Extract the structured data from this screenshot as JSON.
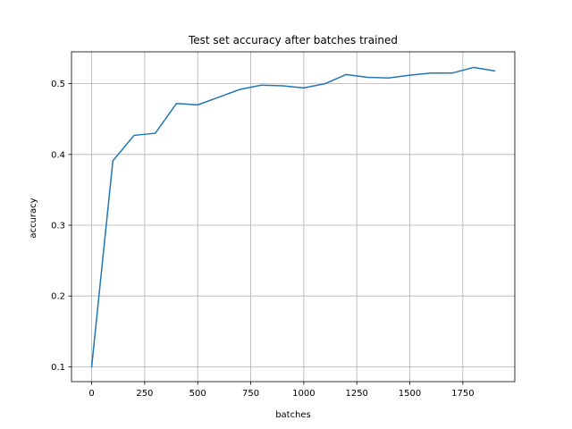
{
  "chart_data": {
    "type": "line",
    "title": "Test set accuracy after batches trained",
    "xlabel": "batches",
    "ylabel": "accuracy",
    "xlim": [
      -95,
      1995
    ],
    "ylim": [
      0.079,
      0.545
    ],
    "grid": true,
    "x_ticks": [
      0,
      250,
      500,
      750,
      1000,
      1250,
      1500,
      1750
    ],
    "x_tick_labels": [
      "0",
      "250",
      "500",
      "750",
      "1000",
      "1250",
      "1500",
      "1750"
    ],
    "y_ticks": [
      0.1,
      0.2,
      0.3,
      0.4,
      0.5
    ],
    "y_tick_labels": [
      "0.1",
      "0.2",
      "0.3",
      "0.4",
      "0.5"
    ],
    "line_color": "#1f77b4",
    "series": [
      {
        "x": [
          0,
          100,
          200,
          300,
          400,
          500,
          600,
          700,
          800,
          900,
          1000,
          1100,
          1200,
          1300,
          1400,
          1500,
          1600,
          1700,
          1800,
          1900
        ],
        "y": [
          0.1,
          0.391,
          0.427,
          0.43,
          0.472,
          0.47,
          0.481,
          0.492,
          0.498,
          0.497,
          0.494,
          0.5,
          0.513,
          0.509,
          0.508,
          0.512,
          0.515,
          0.515,
          0.523,
          0.518
        ]
      }
    ]
  }
}
